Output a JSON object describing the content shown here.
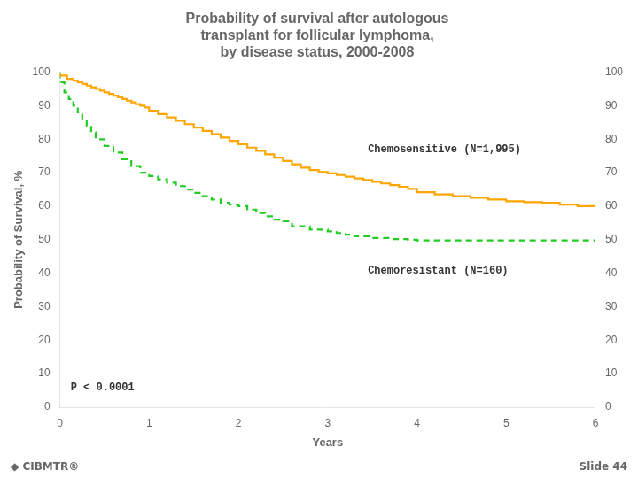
{
  "chart_data": {
    "type": "step",
    "title": [
      "Probability of survival after autologous",
      "transplant for follicular lymphoma,",
      "by disease status, 2000-2008"
    ],
    "x_label": "Years",
    "y_label": "Probability of Survival, %",
    "xlim": [
      0,
      6
    ],
    "xticks": [
      0,
      1,
      2,
      3,
      4,
      5,
      6
    ],
    "ylim": [
      0,
      100
    ],
    "yticks": [
      0,
      10,
      20,
      30,
      40,
      50,
      60,
      70,
      80,
      90,
      100
    ],
    "y2lim": [
      0,
      100
    ],
    "y2ticks": [
      0,
      10,
      20,
      30,
      40,
      50,
      60,
      70,
      80,
      90,
      100
    ],
    "grid": false,
    "series": [
      {
        "color": "#FFA500",
        "line_style": "solid",
        "x": [
          0,
          0.08,
          0.15,
          0.2,
          0.25,
          0.3,
          0.35,
          0.4,
          0.45,
          0.5,
          0.55,
          0.6,
          0.65,
          0.7,
          0.75,
          0.8,
          0.85,
          0.9,
          0.95,
          1.0,
          1.1,
          1.2,
          1.3,
          1.4,
          1.5,
          1.6,
          1.7,
          1.8,
          1.9,
          2.0,
          2.1,
          2.2,
          2.3,
          2.4,
          2.5,
          2.6,
          2.7,
          2.8,
          2.9,
          3.0,
          3.1,
          3.2,
          3.3,
          3.4,
          3.5,
          3.6,
          3.7,
          3.8,
          3.9,
          4.0,
          4.2,
          4.4,
          4.6,
          4.8,
          5.0,
          5.2,
          5.4,
          5.6,
          5.8,
          6.0
        ],
        "values": [
          100,
          99,
          98,
          97.5,
          97,
          96.5,
          96,
          95.5,
          95,
          94.5,
          94,
          93.5,
          93,
          92.5,
          92,
          91.5,
          91,
          90.5,
          90,
          89.5,
          88.5,
          87.5,
          86.5,
          85.5,
          84.5,
          83.5,
          82.5,
          81.5,
          80.5,
          79.5,
          78.5,
          77.5,
          76.5,
          75.5,
          74.5,
          73.5,
          72.5,
          71.5,
          70.8,
          70.2,
          69.8,
          69.3,
          68.8,
          68.3,
          67.8,
          67.3,
          66.8,
          66.3,
          65.8,
          65.2,
          64.2,
          63.5,
          63.0,
          62.5,
          62.0,
          61.5,
          61.2,
          61.0,
          60.5,
          60.0
        ]
      },
      {
        "color": "#22CC22",
        "line_style": "dashed",
        "x": [
          0,
          0.05,
          0.1,
          0.15,
          0.2,
          0.25,
          0.3,
          0.35,
          0.4,
          0.5,
          0.6,
          0.7,
          0.8,
          0.9,
          1.0,
          1.1,
          1.2,
          1.3,
          1.4,
          1.5,
          1.6,
          1.7,
          1.8,
          1.9,
          2.0,
          2.1,
          2.2,
          2.3,
          2.4,
          2.5,
          2.6,
          2.8,
          3.0,
          3.1,
          3.2,
          3.3,
          3.5,
          3.7,
          3.9,
          4.0,
          4.2,
          4.5,
          5.0,
          5.5,
          6.0
        ],
        "values": [
          100,
          97,
          94,
          92,
          90,
          88,
          86,
          84,
          82,
          80,
          78,
          76,
          74,
          72,
          70,
          69,
          68,
          67,
          66,
          65,
          64,
          63,
          62,
          61,
          60.5,
          60,
          59,
          58,
          57,
          56,
          55.5,
          54,
          53,
          52.5,
          52,
          51.5,
          51,
          50.5,
          50.2,
          50,
          49.8,
          49.8,
          49.8,
          49.8,
          49.8
        ]
      }
    ],
    "annotations": [
      {
        "text": "Chemosensitive (N=1,995)",
        "x": 3.45,
        "y": 76
      },
      {
        "text": "Chemoresistant (N=160)",
        "x": 3.45,
        "y": 40
      },
      {
        "text": "P < 0.0001",
        "x": 0.12,
        "y": 5
      }
    ],
    "footer": [
      "◆ CIBMTR®",
      "Slide 44"
    ]
  }
}
